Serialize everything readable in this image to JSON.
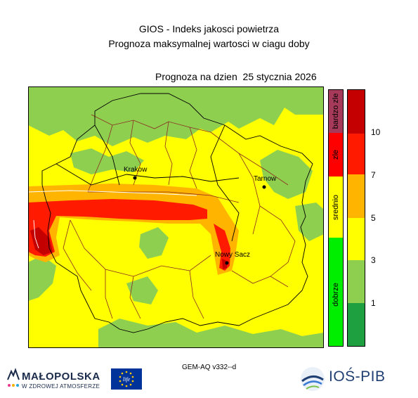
{
  "title_lines": [
    "GIOS - Indeks jakosci powietrza",
    "Prognoza maksymalnej wartosci w ciagu doby"
  ],
  "forecast_label": "Prognoza na dzien",
  "forecast_date": "25 stycznia 2026",
  "cities": [
    {
      "name": "Krakow"
    },
    {
      "name": "Tarnow"
    },
    {
      "name": "Nowy Sacz"
    }
  ],
  "quality_categories": [
    {
      "label": "bardzo zle",
      "color": "#a63a5a"
    },
    {
      "label": "zle",
      "color": "#ff0000"
    },
    {
      "label": "srednio",
      "color": "#ffff00"
    },
    {
      "label": "dobrze",
      "color": "#00ee00"
    }
  ],
  "scale": {
    "ticks": [
      "10",
      "7",
      "5",
      "3",
      "1"
    ],
    "colors": [
      "#c40000",
      "#ff1a00",
      "#ffb400",
      "#ffff00",
      "#8fcf50",
      "#1fa040"
    ]
  },
  "model_label": "GEM-AQ v332--d",
  "logos": {
    "malopolska_line1": "MAŁOPOLSKA",
    "malopolska_line2": "W ZDROWEJ ATMOSFERZE",
    "eu_flag_text": "life",
    "ios_text": "IOŚ-PIB"
  }
}
